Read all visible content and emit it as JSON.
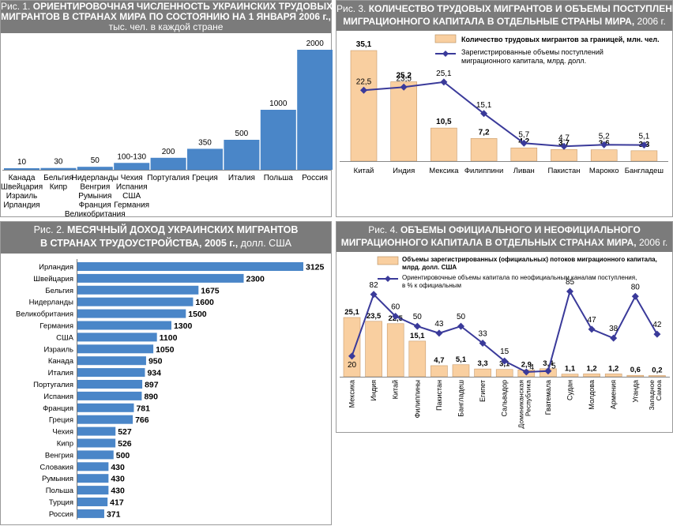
{
  "chart_data": [
    {
      "id": "fig1",
      "type": "bar",
      "title_prefix": "Рис. 1.",
      "title_bold_1": "ОРИЕНТИРОВОЧНАЯ ЧИСЛЕННОСТЬ УКРАИНСКИХ ТРУДОВЫХ",
      "title_bold_2": "МИГРАНТОВ В СТРАНАХ МИРА ПО СОСТОЯНИЮ НА 1 ЯНВАРЯ 2006 г.,",
      "title_suffix": "тыс. чел. в каждой стране",
      "bar_color": "#4a86c8",
      "categories": [
        "Канада\nШвейцария\nИзраиль\nИрландия",
        "Бельгия\nКипр",
        "Нидерланды\nВенгрия\nРумыния\nФранция\nВеликобритания",
        "Чехия\nИспания\nСША\nГермания",
        "Португалия",
        "Греция",
        "Италия",
        "Польша",
        "Россия"
      ],
      "values": [
        10,
        30,
        50,
        115,
        200,
        350,
        500,
        1000,
        2000
      ],
      "value_labels": [
        "10",
        "30",
        "50",
        "100-130",
        "200",
        "350",
        "500",
        "1000",
        "2000"
      ],
      "ylim": [
        0,
        2000
      ]
    },
    {
      "id": "fig2",
      "type": "bar",
      "orientation": "horizontal",
      "title_prefix": "Рис. 2.",
      "title_bold_1": "МЕСЯЧНЫЙ ДОХОД УКРАИНСКИХ МИГРАНТОВ",
      "title_bold_2": "В СТРАНАХ ТРУДОУСТРОЙСТВА, 2005 г.,",
      "title_suffix": "долл. США",
      "bar_color": "#4a86c8",
      "categories": [
        "Ирландия",
        "Швейцария",
        "Бельгия",
        "Нидерланды",
        "Великобритания",
        "Германия",
        "США",
        "Израиль",
        "Канада",
        "Италия",
        "Португалия",
        "Испания",
        "Франция",
        "Греция",
        "Чехия",
        "Кипр",
        "Венгрия",
        "Словакия",
        "Румыния",
        "Польша",
        "Турция",
        "Россия"
      ],
      "values": [
        3125,
        2300,
        1675,
        1600,
        1500,
        1300,
        1100,
        1050,
        950,
        934,
        897,
        890,
        781,
        766,
        527,
        526,
        500,
        430,
        430,
        430,
        417,
        371
      ],
      "xlim": [
        0,
        3125
      ]
    },
    {
      "id": "fig3",
      "type": "bar+line",
      "title_prefix": "Рис. 3.",
      "title_bold_1": "КОЛИЧЕСТВО ТРУДОВЫХ МИГРАНТОВ И ОБЪЕМЫ ПОСТУПЛЕНИЯ",
      "title_bold_2": "МИГРАЦИОННОГО КАПИТАЛА В ОТДЕЛЬНЫЕ СТРАНЫ МИРА,",
      "title_suffix": "2006 г.",
      "bar_color": "#f9cfa0",
      "line_color": "#3a3a9a",
      "categories": [
        "Китай",
        "Индия",
        "Мексика",
        "Филиппини",
        "Ливан",
        "Пакистан",
        "Марокко",
        "Бангладеш"
      ],
      "series": [
        {
          "name": "Количество трудовых мигрантов за границей, млн. чел.",
          "kind": "bar",
          "values": [
            35.1,
            25.2,
            10.5,
            7.2,
            4.2,
            3.7,
            3.6,
            3.3
          ],
          "labels": [
            "35,1",
            "25,2",
            "10,5",
            "7,2",
            "4,2",
            "3,7",
            "3,6",
            "3,3"
          ]
        },
        {
          "name_1": "Зарегистрированные объемы поступлений",
          "name_2": "миграционного капитала, млрд. долл.",
          "kind": "line",
          "values": [
            22.5,
            23.5,
            25.1,
            15.1,
            5.7,
            4.7,
            5.2,
            5.1
          ],
          "labels": [
            "22,5",
            "23,5",
            "25,1",
            "15,1",
            "5,7",
            "4,7",
            "5,2",
            "5,1"
          ]
        }
      ],
      "ylim": [
        0,
        40
      ]
    },
    {
      "id": "fig4",
      "type": "bar+line",
      "title_prefix": "Рис. 4.",
      "title_bold_1": "ОБЪЕМЫ ОФИЦИАЛЬНОГО И НЕОФИЦИАЛЬНОГО",
      "title_bold_2": "МИГРАЦИОННОГО КАПИТАЛА В ОТДЕЛЬНЫХ СТРАНАХ МИРА,",
      "title_suffix": "2006 г.",
      "bar_color": "#f9cfa0",
      "line_color": "#3a3a9a",
      "categories": [
        "Мексика",
        "Индия",
        "Китай",
        "Филиппины",
        "Пакистан",
        "Бангладеш",
        "Египет",
        "Сальвадор",
        "Доминиканская Республика",
        "Гватемала",
        "Судан",
        "Молдова",
        "Армения",
        "Уганда",
        "Западное Самоа"
      ],
      "series": [
        {
          "name_1": "Объемы зарегистрированных (официальных) потоков миграционного капитала,",
          "name_2": "млрд. долл. США",
          "kind": "bar",
          "values": [
            25.1,
            23.5,
            22.5,
            15.1,
            4.7,
            5.1,
            3.3,
            3.1,
            2.9,
            3.4,
            1.1,
            1.2,
            1.2,
            0.6,
            0.2
          ],
          "labels": [
            "25,1",
            "23,5",
            "22,5",
            "15,1",
            "4,7",
            "5,1",
            "3,3",
            "3,1",
            "2,9",
            "3,4",
            "1,1",
            "1,2",
            "1,2",
            "0,6",
            "0,2"
          ]
        },
        {
          "name_1": "Ориентировочные объемы капитала по неофициальным каналам поступления,",
          "name_2": "в % к официальным",
          "kind": "line",
          "values": [
            20,
            82,
            60,
            50,
            43,
            50,
            33,
            15,
            4,
            5,
            85,
            47,
            38,
            80,
            42
          ],
          "labels": [
            "20",
            "82",
            "60",
            "50",
            "43",
            "50",
            "33",
            "15",
            "4",
            "5",
            "85",
            "47",
            "38",
            "80",
            "42"
          ]
        }
      ],
      "ylim_bar": [
        0,
        28
      ],
      "ylim_line": [
        0,
        100
      ]
    }
  ]
}
